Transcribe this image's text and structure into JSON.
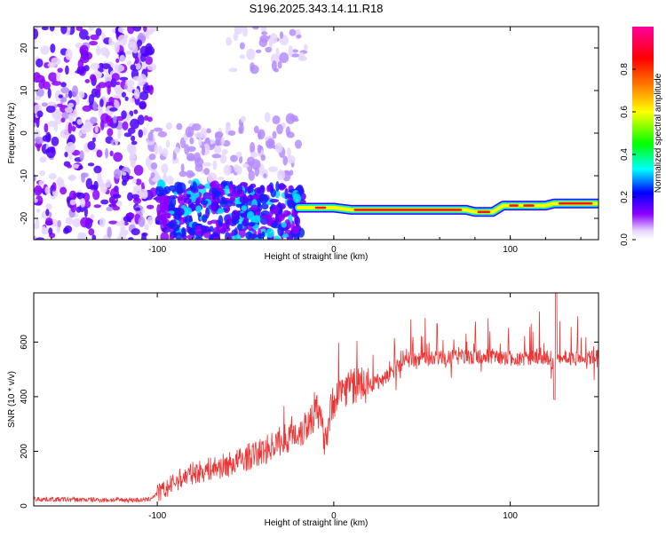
{
  "title": "S196.2025.343.14.11.R18",
  "chart_data": [
    {
      "type": "heatmap",
      "xlabel": "Height of straight line (km)",
      "ylabel": "Frequency (Hz)",
      "xlim": [
        -170,
        150
      ],
      "ylim": [
        -25,
        25
      ],
      "xticks": [
        -100,
        0,
        100
      ],
      "yticks": [
        -20,
        -10,
        0,
        10,
        20
      ],
      "grid": false,
      "colorbar": {
        "label": "Normalized spectral amplitude",
        "ticks": [
          "0.0",
          "0.2",
          "0.4",
          "0.6",
          "0.8"
        ],
        "range": [
          0,
          1
        ],
        "colors": [
          "#ffffff",
          "#8b00ff",
          "#0000ff",
          "#00ffff",
          "#00ff00",
          "#ffff00",
          "#ff8000",
          "#ff0000",
          "#ff00a0"
        ]
      },
      "ridge": {
        "description": "narrow high-amplitude band near -17 Hz",
        "x": [
          -20,
          -10,
          0,
          10,
          40,
          75,
          80,
          90,
          96,
          105,
          120,
          125,
          150
        ],
        "y": [
          -17.5,
          -17.5,
          -17.5,
          -18,
          -18,
          -18,
          -18.5,
          -18.5,
          -17,
          -17,
          -17,
          -16.5,
          -16.5
        ]
      }
    },
    {
      "type": "line",
      "xlabel": "Height of straight line (km)",
      "ylabel": "SNR (10 * v/v)",
      "xlim": [
        -170,
        150
      ],
      "ylim": [
        0,
        780
      ],
      "xticks": [
        -100,
        0,
        100
      ],
      "yticks": [
        0,
        200,
        400,
        600
      ],
      "grid": false,
      "series": [
        {
          "name": "SNR",
          "color": "#ee3333",
          "x": [
            -170,
            -130,
            -105,
            -100,
            -95,
            -90,
            -80,
            -60,
            -40,
            -30,
            -20,
            -15,
            -10,
            -5,
            0,
            5,
            10,
            20,
            30,
            40,
            50,
            60,
            70,
            80,
            90,
            100,
            110,
            120,
            125,
            130,
            140,
            150
          ],
          "y": [
            25,
            22,
            22,
            45,
            60,
            90,
            120,
            150,
            200,
            240,
            270,
            300,
            350,
            250,
            390,
            430,
            440,
            440,
            470,
            530,
            540,
            540,
            545,
            545,
            545,
            540,
            540,
            545,
            520,
            545,
            540,
            545
          ]
        }
      ]
    }
  ]
}
